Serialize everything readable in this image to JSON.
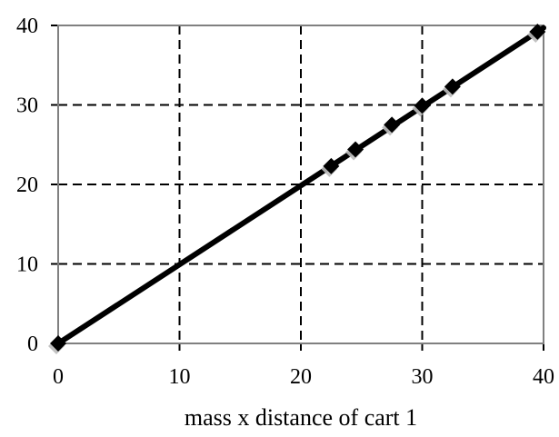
{
  "chart_data": {
    "type": "scatter",
    "xlabel": "mass x distance of cart 1",
    "ylabel": "",
    "title": "",
    "xlim": [
      0,
      40
    ],
    "ylim": [
      0,
      40
    ],
    "xticks": [
      "0",
      "10",
      "20",
      "30",
      "40"
    ],
    "yticks": [
      "0",
      "10",
      "20",
      "30",
      "40"
    ],
    "grid": true,
    "grid_style": "dashed",
    "series": [
      {
        "points": [
          {
            "x": 0,
            "y": 0
          },
          {
            "x": 22.5,
            "y": 22.3
          },
          {
            "x": 24.5,
            "y": 24.4
          },
          {
            "x": 27.5,
            "y": 27.5
          },
          {
            "x": 30.0,
            "y": 29.9
          },
          {
            "x": 32.5,
            "y": 32.3
          },
          {
            "x": 39.5,
            "y": 39.2
          }
        ],
        "marker": "diamond",
        "line": "fit",
        "color": "#000000"
      }
    ],
    "fit_line": {
      "x": [
        0,
        40
      ],
      "y": [
        0,
        39.7
      ]
    }
  }
}
